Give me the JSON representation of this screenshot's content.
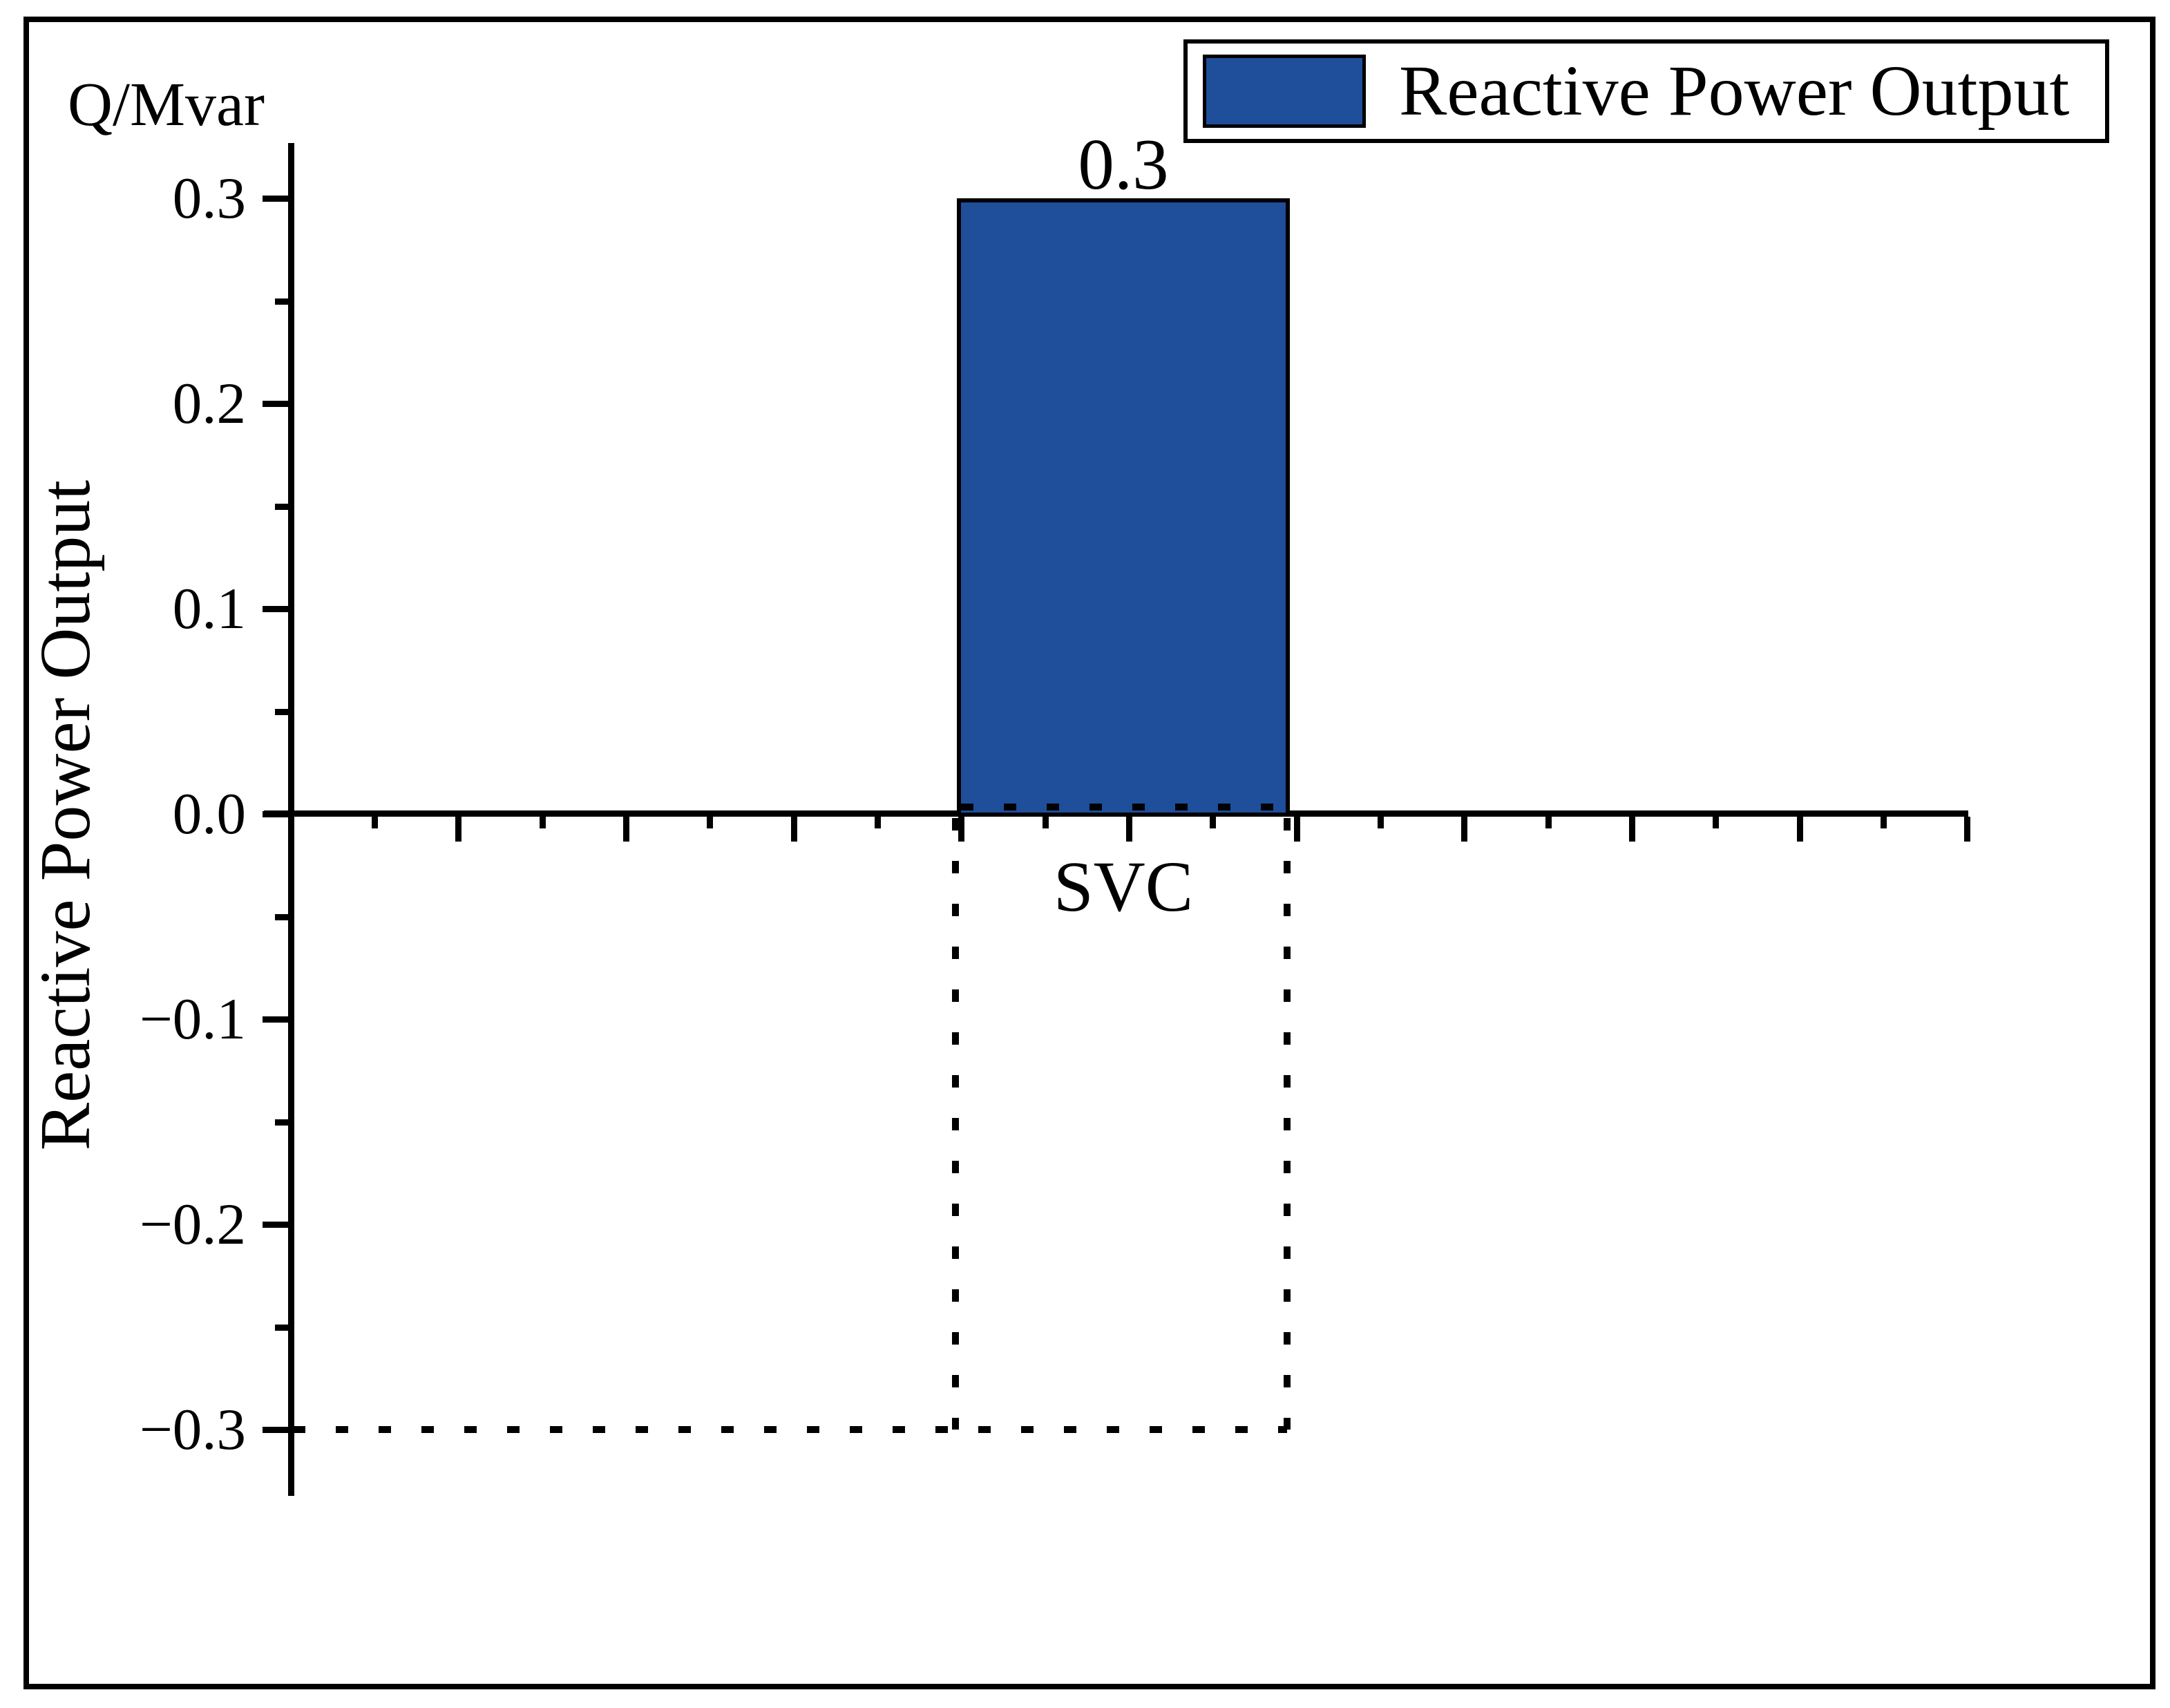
{
  "window": {
    "background": "#ffffff",
    "frame_color": "#000000"
  },
  "header": {
    "unit_label": "Q/Mvar"
  },
  "legend": {
    "position": "top-right",
    "items": [
      {
        "label": "Reactive Power Output",
        "swatch_color": "#1F4E9B"
      }
    ]
  },
  "y_axis": {
    "title": "Reactive Power Output",
    "major_ticks": [
      {
        "value": 0.3,
        "label": "0.3"
      },
      {
        "value": 0.2,
        "label": "0.2"
      },
      {
        "value": 0.1,
        "label": "0.1"
      },
      {
        "value": 0.0,
        "label": "0.0"
      },
      {
        "value": -0.1,
        "label": "−0.1"
      },
      {
        "value": -0.2,
        "label": "−0.2"
      },
      {
        "value": -0.3,
        "label": "−0.3"
      }
    ],
    "minor_ticks": [
      0.25,
      0.15,
      0.05,
      -0.05,
      -0.15,
      -0.25
    ]
  },
  "x_axis": {
    "category_labels": [
      "SVC"
    ]
  },
  "bar": {
    "value_label": "0.3"
  },
  "chart_data": {
    "type": "bar",
    "title": "",
    "categories": [
      "SVC"
    ],
    "series": [
      {
        "name": "Reactive Power Output",
        "values": [
          0.3
        ],
        "color": "#1F4E9B"
      }
    ],
    "bar_value_labels": [
      "0.3"
    ],
    "xlabel": "",
    "ylabel": "Reactive Power Output",
    "y_unit_label": "Q/Mvar",
    "ylim": [
      -0.327,
      0.327
    ],
    "y_major_tick_values": [
      0.3,
      0.2,
      0.1,
      0.0,
      -0.1,
      -0.2,
      -0.3
    ],
    "y_minor_tick_values": [
      0.25,
      0.15,
      0.05,
      -0.05,
      -0.15,
      -0.25
    ],
    "grid": false,
    "legend_position": "top-right",
    "annotations": [
      {
        "type": "dashed-capability-box",
        "from_value": 0,
        "to_value": -0.3,
        "aligned_to_bar": true
      },
      {
        "type": "dashed-level-line",
        "value": -0.3,
        "from_axis": true
      }
    ]
  }
}
